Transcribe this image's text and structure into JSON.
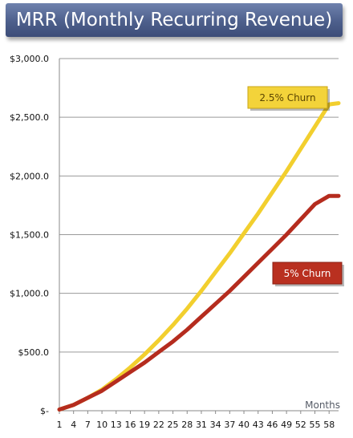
{
  "title": "MRR (Monthly Recurring Revenue)",
  "chart_data": {
    "type": "line",
    "xlabel": "Months",
    "ylabel": "",
    "x_tick_labels": [
      "1",
      "4",
      "7",
      "10",
      "13",
      "16",
      "19",
      "22",
      "25",
      "28",
      "31",
      "34",
      "37",
      "40",
      "43",
      "46",
      "49",
      "52",
      "55",
      "58"
    ],
    "y_tick_labels": [
      "$-",
      "$500.0",
      "$1,000.0",
      "$1,500.0",
      "$2,000.0",
      "$2,500.0",
      "$3,000.0"
    ],
    "y_tick_values": [
      0,
      500,
      1000,
      1500,
      2000,
      2500,
      3000
    ],
    "xlim": [
      1,
      60
    ],
    "ylim": [
      0,
      3000
    ],
    "grid": "horizontal",
    "series": [
      {
        "name": "2.5% Churn",
        "color": "#f2cf2e",
        "label_bg": "#f3d33a",
        "label_text_color": "#5a4400",
        "x": [
          1,
          4,
          7,
          10,
          13,
          16,
          19,
          22,
          25,
          28,
          31,
          34,
          37,
          40,
          43,
          46,
          49,
          52,
          55,
          58,
          60
        ],
        "values": [
          10,
          50,
          110,
          180,
          270,
          370,
          480,
          600,
          730,
          870,
          1020,
          1180,
          1340,
          1510,
          1680,
          1860,
          2040,
          2230,
          2420,
          2610,
          2620
        ]
      },
      {
        "name": "5% Churn",
        "color": "#b52c1e",
        "label_bg": "#b93020",
        "label_text_color": "#ffffff",
        "x": [
          1,
          4,
          7,
          10,
          13,
          16,
          19,
          22,
          25,
          28,
          31,
          34,
          37,
          40,
          43,
          46,
          49,
          52,
          55,
          58,
          60
        ],
        "values": [
          10,
          50,
          110,
          170,
          250,
          330,
          410,
          500,
          590,
          690,
          800,
          910,
          1020,
          1140,
          1260,
          1380,
          1500,
          1630,
          1760,
          1830,
          1830
        ]
      }
    ]
  }
}
